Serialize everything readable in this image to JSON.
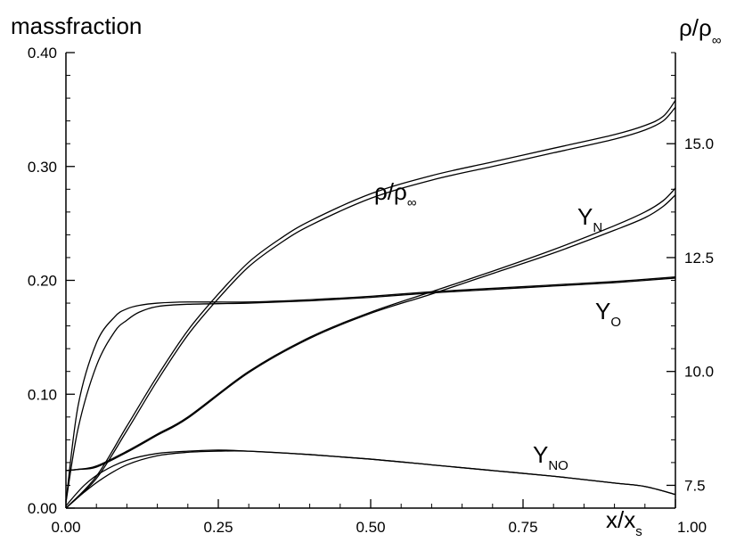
{
  "chart_data": {
    "type": "line",
    "xlabel": "x/x",
    "xlabel_sub": "s",
    "ylabel_left": "massfraction",
    "ylabel_right_main": "ρ/ρ",
    "ylabel_right_sub": "∞",
    "xlim": [
      0,
      1
    ],
    "ylim_left": [
      0,
      0.4
    ],
    "ylim_right": [
      7,
      17
    ],
    "x_ticks": [
      "0.00",
      "0.25",
      "0.50",
      "0.75",
      "1.00"
    ],
    "y_left_ticks": [
      "0.00",
      "0.10",
      "0.20",
      "0.30",
      "0.40"
    ],
    "y_right_ticks": [
      "7.5",
      "10.0",
      "12.5",
      "15.0"
    ],
    "grid": false,
    "annotations": [
      {
        "id": "rho",
        "main": "ρ/ρ",
        "sub": "∞"
      },
      {
        "id": "yn",
        "main": "Y",
        "sub": "N"
      },
      {
        "id": "yo",
        "main": "Y",
        "sub": "O"
      },
      {
        "id": "yno",
        "main": "Y",
        "sub": "NO"
      }
    ],
    "series": [
      {
        "id": "yo_a",
        "axis": "left",
        "x": [
          0,
          0.02,
          0.05,
          0.08,
          0.1,
          0.12,
          0.15,
          0.2,
          0.3,
          0.4,
          0.5,
          0.6,
          0.7,
          0.8,
          0.9,
          1.0
        ],
        "y": [
          0.005,
          0.09,
          0.145,
          0.168,
          0.175,
          0.178,
          0.18,
          0.181,
          0.181,
          0.183,
          0.186,
          0.19,
          0.193,
          0.196,
          0.199,
          0.203
        ]
      },
      {
        "id": "yo_b",
        "axis": "left",
        "x": [
          0,
          0.02,
          0.05,
          0.08,
          0.1,
          0.12,
          0.15,
          0.2,
          0.3,
          0.4,
          0.5,
          0.6,
          0.7,
          0.8,
          0.9,
          1.0
        ],
        "y": [
          0.005,
          0.07,
          0.125,
          0.155,
          0.165,
          0.172,
          0.177,
          0.179,
          0.18,
          0.182,
          0.185,
          0.189,
          0.192,
          0.195,
          0.198,
          0.202
        ]
      },
      {
        "id": "yn_a",
        "axis": "left",
        "x": [
          0,
          0.02,
          0.05,
          0.1,
          0.15,
          0.2,
          0.3,
          0.4,
          0.5,
          0.6,
          0.7,
          0.8,
          0.9,
          0.95,
          0.98,
          1.0
        ],
        "y": [
          0.033,
          0.034,
          0.037,
          0.05,
          0.065,
          0.08,
          0.12,
          0.15,
          0.172,
          0.19,
          0.208,
          0.227,
          0.248,
          0.26,
          0.27,
          0.281
        ]
      },
      {
        "id": "yn_b",
        "axis": "left",
        "x": [
          0,
          0.02,
          0.05,
          0.1,
          0.15,
          0.2,
          0.3,
          0.4,
          0.5,
          0.6,
          0.7,
          0.8,
          0.9,
          0.95,
          0.98,
          1.0
        ],
        "y": [
          0.033,
          0.034,
          0.036,
          0.049,
          0.064,
          0.079,
          0.119,
          0.149,
          0.171,
          0.188,
          0.206,
          0.224,
          0.244,
          0.255,
          0.265,
          0.275
        ]
      },
      {
        "id": "yno_a",
        "axis": "left",
        "x": [
          0,
          0.03,
          0.06,
          0.1,
          0.15,
          0.2,
          0.25,
          0.3,
          0.4,
          0.5,
          0.6,
          0.7,
          0.8,
          0.9,
          0.95,
          1.0
        ],
        "y": [
          0.002,
          0.02,
          0.032,
          0.042,
          0.048,
          0.05,
          0.051,
          0.05,
          0.047,
          0.043,
          0.038,
          0.033,
          0.028,
          0.022,
          0.019,
          0.012
        ]
      },
      {
        "id": "yno_b",
        "axis": "left",
        "x": [
          0,
          0.03,
          0.06,
          0.1,
          0.15,
          0.2,
          0.25,
          0.3,
          0.4,
          0.5,
          0.6,
          0.7,
          0.8,
          0.9,
          0.95,
          1.0
        ],
        "y": [
          0.0,
          0.014,
          0.026,
          0.038,
          0.046,
          0.049,
          0.05,
          0.05,
          0.047,
          0.043,
          0.038,
          0.033,
          0.028,
          0.022,
          0.019,
          0.012
        ]
      },
      {
        "id": "rho_a",
        "axis": "right",
        "x": [
          0,
          0.05,
          0.1,
          0.15,
          0.2,
          0.25,
          0.3,
          0.35,
          0.4,
          0.5,
          0.6,
          0.7,
          0.8,
          0.9,
          0.95,
          0.98,
          1.0
        ],
        "y": [
          7.0,
          7.7,
          8.8,
          9.9,
          10.9,
          11.7,
          12.4,
          12.9,
          13.3,
          13.9,
          14.3,
          14.6,
          14.9,
          15.2,
          15.4,
          15.6,
          15.95
        ]
      },
      {
        "id": "rho_b",
        "axis": "right",
        "x": [
          0,
          0.05,
          0.1,
          0.15,
          0.2,
          0.25,
          0.3,
          0.35,
          0.4,
          0.5,
          0.6,
          0.7,
          0.8,
          0.9,
          0.95,
          0.98,
          1.0
        ],
        "y": [
          7.0,
          7.65,
          8.7,
          9.8,
          10.8,
          11.6,
          12.3,
          12.8,
          13.2,
          13.8,
          14.2,
          14.5,
          14.8,
          15.1,
          15.3,
          15.5,
          15.8
        ]
      }
    ]
  }
}
